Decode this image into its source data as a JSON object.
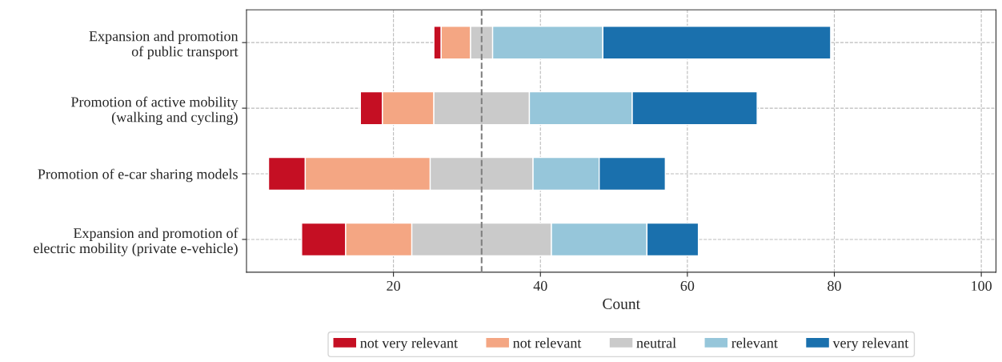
{
  "chart_data": {
    "type": "bar",
    "orientation": "horizontal",
    "categories": [
      "Expansion and promotion\nof public transport",
      "Promotion of active mobility\n(walking and cycling)",
      "Promotion of e-car sharing models",
      "Expansion and promotion of\nelectric mobility (private e-vehicle)"
    ],
    "series": [
      {
        "name": "not very relevant",
        "color": "#c50f23",
        "values": [
          1,
          3,
          5,
          6
        ],
        "base": [
          25.5,
          15.5,
          3,
          7.5
        ]
      },
      {
        "name": "not relevant",
        "color": "#f4a683",
        "values": [
          4,
          7,
          17,
          9
        ],
        "base": [
          26.5,
          18.5,
          8,
          13.5
        ]
      },
      {
        "name": "neutral",
        "color": "#cacaca",
        "values": [
          3,
          13,
          14,
          19
        ],
        "base": [
          30.5,
          25.5,
          25,
          22.5
        ]
      },
      {
        "name": "relevant",
        "color": "#96c6da",
        "values": [
          15,
          14,
          9,
          13
        ],
        "base": [
          33.5,
          38.5,
          39,
          41.5
        ]
      },
      {
        "name": "very relevant",
        "color": "#1a70ad",
        "values": [
          31,
          17,
          9,
          7
        ],
        "base": [
          48.5,
          52.5,
          48,
          54.5
        ]
      }
    ],
    "xlabel": "Count",
    "xlim": [
      0,
      102
    ],
    "xticks": [
      20,
      40,
      60,
      80,
      100
    ],
    "ref_lines": [
      {
        "axis": "x",
        "value": 32,
        "color": "#808080",
        "line_style": "dashed"
      }
    ],
    "grid": true,
    "legend": "bottom"
  }
}
